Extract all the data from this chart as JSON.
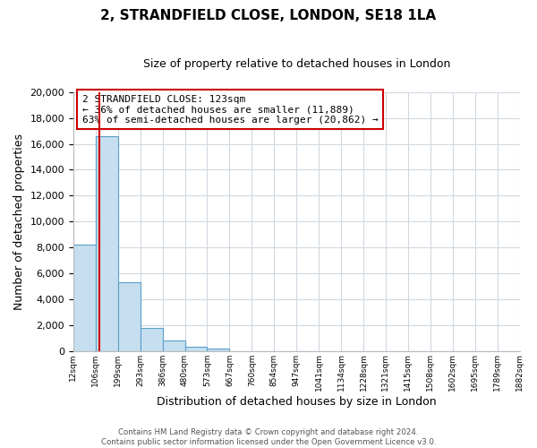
{
  "title": "2, STRANDFIELD CLOSE, LONDON, SE18 1LA",
  "subtitle": "Size of property relative to detached houses in London",
  "bar_values": [
    8200,
    16600,
    5300,
    1800,
    800,
    300,
    200,
    0,
    0,
    0,
    0,
    0,
    0,
    0,
    0,
    0,
    0,
    0,
    0,
    0
  ],
  "bin_labels": [
    "12sqm",
    "106sqm",
    "199sqm",
    "293sqm",
    "386sqm",
    "480sqm",
    "573sqm",
    "667sqm",
    "760sqm",
    "854sqm",
    "947sqm",
    "1041sqm",
    "1134sqm",
    "1228sqm",
    "1321sqm",
    "1415sqm",
    "1508sqm",
    "1602sqm",
    "1695sqm",
    "1789sqm",
    "1882sqm"
  ],
  "bar_color": "#c6dff0",
  "bar_edge_color": "#5a9ec9",
  "vline_color": "#cc0000",
  "vline_pos": 1.17,
  "ylim": [
    0,
    20000
  ],
  "yticks": [
    0,
    2000,
    4000,
    6000,
    8000,
    10000,
    12000,
    14000,
    16000,
    18000,
    20000
  ],
  "xlabel": "Distribution of detached houses by size in London",
  "ylabel": "Number of detached properties",
  "annotation_title": "2 STRANDFIELD CLOSE: 123sqm",
  "annotation_line1": "← 36% of detached houses are smaller (11,889)",
  "annotation_line2": "63% of semi-detached houses are larger (20,862) →",
  "annotation_box_color": "#ffffff",
  "annotation_box_edgecolor": "#cc0000",
  "footer_line1": "Contains HM Land Registry data © Crown copyright and database right 2024.",
  "footer_line2": "Contains public sector information licensed under the Open Government Licence v3.0.",
  "bg_color": "#ffffff",
  "grid_color": "#d0d8e0"
}
